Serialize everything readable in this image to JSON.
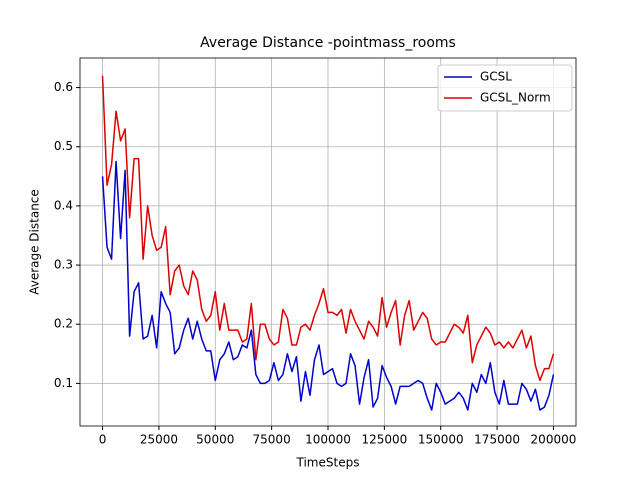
{
  "chart_data": {
    "type": "line",
    "title": "Average Distance -pointmass_rooms",
    "x_label": "TimeSteps",
    "y_label": "Average Distance",
    "x": [
      0,
      2000,
      4000,
      6000,
      8000,
      10000,
      12000,
      14000,
      16000,
      18000,
      20000,
      22000,
      24000,
      26000,
      28000,
      30000,
      32000,
      34000,
      36000,
      38000,
      40000,
      42000,
      44000,
      46000,
      48000,
      50000,
      52000,
      54000,
      56000,
      58000,
      60000,
      62000,
      64000,
      66000,
      68000,
      70000,
      72000,
      74000,
      76000,
      78000,
      80000,
      82000,
      84000,
      86000,
      88000,
      90000,
      92000,
      94000,
      96000,
      98000,
      100000,
      102000,
      104000,
      106000,
      108000,
      110000,
      112000,
      114000,
      116000,
      118000,
      120000,
      122000,
      124000,
      126000,
      128000,
      130000,
      132000,
      134000,
      136000,
      138000,
      140000,
      142000,
      144000,
      146000,
      148000,
      150000,
      152000,
      154000,
      156000,
      158000,
      160000,
      162000,
      164000,
      166000,
      168000,
      170000,
      172000,
      174000,
      176000,
      178000,
      180000,
      182000,
      184000,
      186000,
      188000,
      190000,
      192000,
      194000,
      196000,
      198000,
      200000
    ],
    "series": [
      {
        "name": "GCSL",
        "color": "#0000cc",
        "values": [
          0.45,
          0.33,
          0.31,
          0.475,
          0.345,
          0.46,
          0.18,
          0.255,
          0.27,
          0.175,
          0.18,
          0.215,
          0.16,
          0.255,
          0.235,
          0.22,
          0.15,
          0.16,
          0.19,
          0.21,
          0.175,
          0.205,
          0.175,
          0.155,
          0.155,
          0.105,
          0.14,
          0.15,
          0.17,
          0.14,
          0.145,
          0.165,
          0.16,
          0.19,
          0.115,
          0.1,
          0.1,
          0.105,
          0.135,
          0.105,
          0.115,
          0.15,
          0.12,
          0.145,
          0.07,
          0.12,
          0.08,
          0.14,
          0.165,
          0.115,
          0.12,
          0.125,
          0.1,
          0.095,
          0.1,
          0.15,
          0.13,
          0.065,
          0.11,
          0.14,
          0.06,
          0.075,
          0.13,
          0.11,
          0.095,
          0.065,
          0.095,
          0.095,
          0.095,
          0.1,
          0.105,
          0.1,
          0.075,
          0.055,
          0.1,
          0.085,
          0.065,
          0.07,
          0.075,
          0.085,
          0.075,
          0.055,
          0.1,
          0.085,
          0.115,
          0.1,
          0.135,
          0.085,
          0.065,
          0.105,
          0.065,
          0.065,
          0.065,
          0.1,
          0.09,
          0.07,
          0.09,
          0.055,
          0.06,
          0.08,
          0.115
        ]
      },
      {
        "name": "GCSL_Norm",
        "color": "#dd0000",
        "values": [
          0.62,
          0.435,
          0.47,
          0.56,
          0.51,
          0.53,
          0.38,
          0.48,
          0.48,
          0.31,
          0.4,
          0.35,
          0.325,
          0.33,
          0.365,
          0.25,
          0.29,
          0.3,
          0.265,
          0.25,
          0.29,
          0.275,
          0.225,
          0.205,
          0.215,
          0.255,
          0.19,
          0.235,
          0.19,
          0.19,
          0.19,
          0.17,
          0.175,
          0.235,
          0.14,
          0.2,
          0.2,
          0.175,
          0.165,
          0.17,
          0.225,
          0.21,
          0.165,
          0.165,
          0.195,
          0.2,
          0.19,
          0.215,
          0.235,
          0.26,
          0.22,
          0.22,
          0.215,
          0.225,
          0.185,
          0.225,
          0.205,
          0.19,
          0.175,
          0.205,
          0.195,
          0.18,
          0.245,
          0.195,
          0.22,
          0.24,
          0.165,
          0.215,
          0.24,
          0.19,
          0.205,
          0.22,
          0.21,
          0.175,
          0.165,
          0.17,
          0.17,
          0.185,
          0.2,
          0.195,
          0.185,
          0.215,
          0.135,
          0.165,
          0.18,
          0.195,
          0.185,
          0.165,
          0.17,
          0.16,
          0.17,
          0.16,
          0.175,
          0.19,
          0.16,
          0.18,
          0.13,
          0.105,
          0.125,
          0.125,
          0.15
        ]
      }
    ],
    "xlim": [
      -10000,
      210000
    ],
    "ylim": [
      0.028,
      0.65
    ],
    "xticks": [
      0,
      25000,
      50000,
      75000,
      100000,
      125000,
      150000,
      175000,
      200000
    ],
    "yticks": [
      0.1,
      0.2,
      0.3,
      0.4,
      0.5,
      0.6
    ],
    "grid": true,
    "legend": "upper right"
  }
}
